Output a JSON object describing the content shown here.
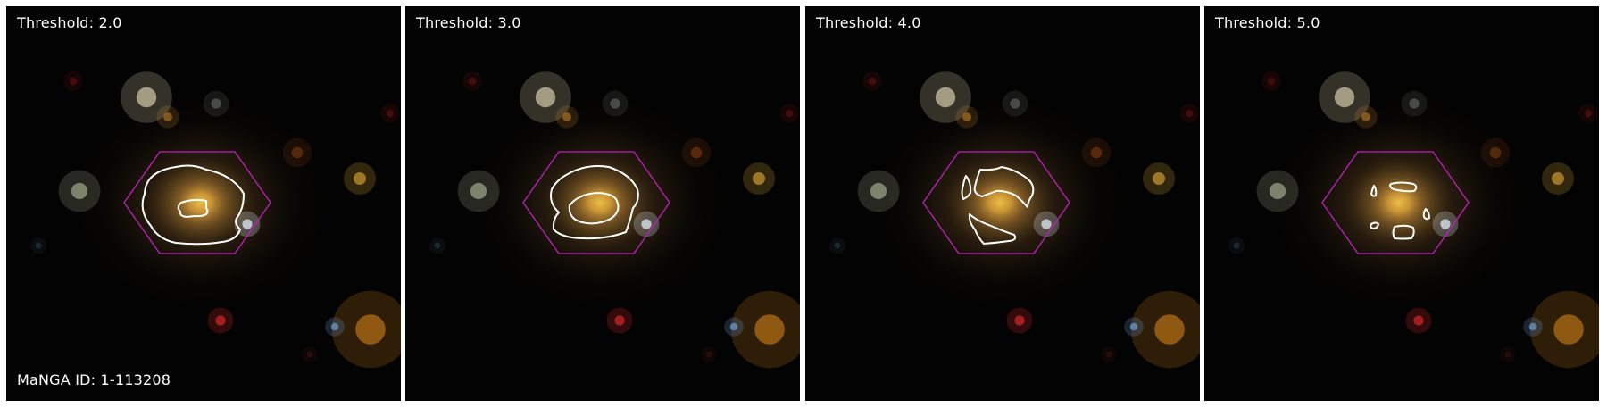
{
  "panels": [
    {
      "label": "Threshold: 2.0",
      "threshold": 2.0
    },
    {
      "label": "Threshold: 3.0",
      "threshold": 3.0
    },
    {
      "label": "Threshold: 4.0",
      "threshold": 4.0
    },
    {
      "label": "Threshold: 5.0",
      "threshold": 5.0
    }
  ],
  "manga_id_label": "MaNGA ID: 1-113208",
  "colors": {
    "background": "#040303",
    "hexagon": "#c020c0",
    "contour": "#ffffff",
    "galaxy_core": "#f5c84a",
    "text": "#ffffff"
  }
}
